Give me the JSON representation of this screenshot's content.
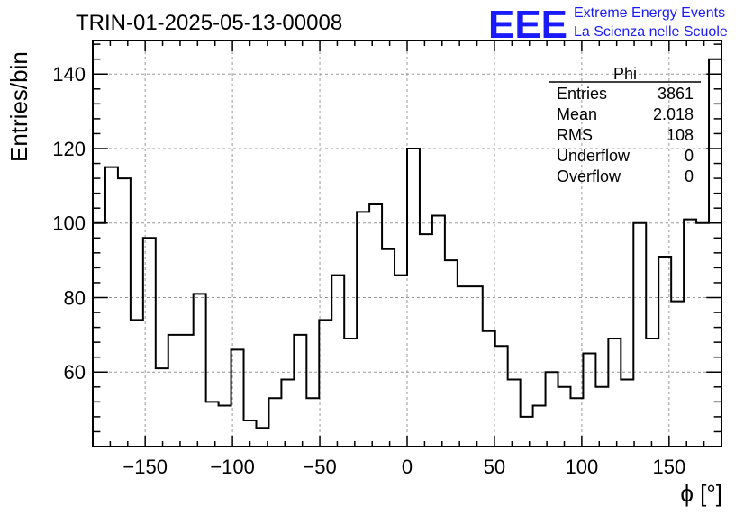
{
  "title": "TRIN-01-2025-05-13-00008",
  "logo": {
    "mark": "EEE",
    "line1": "Extreme Energy Events",
    "line2": "La Scienza nelle Scuole",
    "color": "#1a1aff"
  },
  "chart_data": {
    "type": "histogram",
    "title": "TRIN-01-2025-05-13-00008",
    "xlabel": "ϕ [°]",
    "ylabel": "Entries/bin",
    "xlim": [
      -180,
      180
    ],
    "ylim": [
      40,
      149
    ],
    "bin_width": 7.2,
    "x_ticks": [
      -150,
      -100,
      -50,
      0,
      50,
      100,
      150
    ],
    "x_tick_labels": [
      "−150",
      "−100",
      "−50",
      "0",
      "50",
      "100",
      "150"
    ],
    "y_ticks": [
      60,
      80,
      100,
      120,
      140
    ],
    "y_tick_labels": [
      "60",
      "80",
      "100",
      "120",
      "140"
    ],
    "grid": true,
    "line_color": "#000000",
    "values": [
      100,
      115,
      112,
      74,
      96,
      61,
      70,
      70,
      81,
      52,
      51,
      66,
      47,
      45,
      53,
      58,
      70,
      53,
      74,
      86,
      69,
      103,
      105,
      93,
      86,
      120,
      97,
      102,
      90,
      83,
      83,
      71,
      67,
      58,
      48,
      51,
      60,
      56,
      53,
      65,
      56,
      69,
      58,
      100,
      69,
      91,
      79,
      101,
      100,
      144
    ],
    "stats": {
      "name": "Phi",
      "rows": [
        {
          "label": "Entries",
          "value": "3861"
        },
        {
          "label": "Mean",
          "value": "2.018"
        },
        {
          "label": "RMS",
          "value": "108"
        },
        {
          "label": "Underflow",
          "value": "0"
        },
        {
          "label": "Overflow",
          "value": "0"
        }
      ]
    }
  }
}
